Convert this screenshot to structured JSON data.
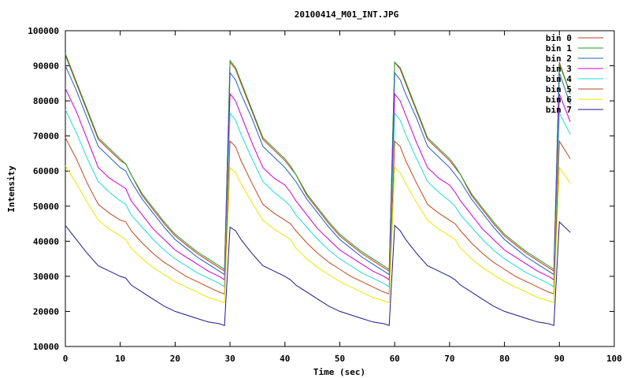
{
  "chart_data": {
    "type": "line",
    "title": "20100414_M01_INT.JPG",
    "xlabel": "Time (sec)",
    "ylabel": "Intensity",
    "xlim": [
      0,
      100
    ],
    "ylim": [
      10000,
      100000
    ],
    "x_ticks": [
      0,
      10,
      20,
      30,
      40,
      50,
      60,
      70,
      80,
      90,
      100
    ],
    "y_ticks": [
      10000,
      20000,
      30000,
      40000,
      50000,
      60000,
      70000,
      80000,
      90000,
      100000
    ],
    "grid": false,
    "legend_position": "top-right",
    "series": [
      {
        "name": "bin 0",
        "color": "#c0392b",
        "x": [
          0,
          2,
          4,
          6,
          8,
          10,
          11,
          12,
          14,
          16,
          18,
          20,
          22,
          24,
          26,
          28,
          29,
          30,
          31,
          32,
          34,
          36,
          38,
          40,
          41,
          42,
          44,
          46,
          48,
          50,
          52,
          54,
          56,
          58,
          59,
          60,
          61,
          62,
          64,
          66,
          68,
          70,
          71,
          72,
          74,
          76,
          78,
          80,
          82,
          84,
          86,
          88,
          89,
          90,
          92
        ],
        "y": [
          93000,
          85000,
          77000,
          69000,
          66000,
          63000,
          62000,
          59000,
          53000,
          49000,
          45000,
          41500,
          39000,
          36500,
          34500,
          32500,
          31500,
          91000,
          89000,
          85000,
          77000,
          69000,
          66000,
          63000,
          61000,
          59000,
          53000,
          49000,
          45000,
          41500,
          39000,
          36500,
          34500,
          32500,
          31500,
          91000,
          89000,
          85000,
          77000,
          69000,
          66000,
          63000,
          61000,
          59000,
          53000,
          49000,
          45000,
          41500,
          39000,
          36500,
          34500,
          32500,
          31500,
          91000,
          82000
        ]
      },
      {
        "name": "bin 1",
        "color": "#1e9e1e",
        "x": [
          0,
          2,
          4,
          6,
          8,
          10,
          11,
          12,
          14,
          16,
          18,
          20,
          22,
          24,
          26,
          28,
          29,
          30,
          31,
          32,
          34,
          36,
          38,
          40,
          41,
          42,
          44,
          46,
          48,
          50,
          52,
          54,
          56,
          58,
          59,
          60,
          61,
          62,
          64,
          66,
          68,
          70,
          71,
          72,
          74,
          76,
          78,
          80,
          82,
          84,
          86,
          88,
          89,
          90,
          92
        ],
        "y": [
          93500,
          85500,
          77500,
          69500,
          66500,
          63500,
          62000,
          59000,
          53500,
          49500,
          45500,
          42000,
          39500,
          37000,
          35000,
          33000,
          32000,
          91500,
          89500,
          85500,
          77500,
          69500,
          66500,
          63500,
          61500,
          59000,
          53500,
          49500,
          45500,
          42000,
          39500,
          37000,
          35000,
          33000,
          32000,
          91000,
          89500,
          85500,
          77500,
          69500,
          66500,
          63500,
          61500,
          59000,
          53500,
          49500,
          45500,
          42000,
          39500,
          37000,
          35000,
          33000,
          32000,
          90500,
          82000
        ]
      },
      {
        "name": "bin 2",
        "color": "#1f5fbf",
        "x": [
          0,
          2,
          4,
          6,
          8,
          10,
          11,
          12,
          14,
          16,
          18,
          20,
          22,
          24,
          26,
          28,
          29,
          30,
          31,
          32,
          34,
          36,
          38,
          40,
          41,
          42,
          44,
          46,
          48,
          50,
          52,
          54,
          56,
          58,
          59,
          60,
          61,
          62,
          64,
          66,
          68,
          70,
          71,
          72,
          74,
          76,
          78,
          80,
          82,
          84,
          86,
          88,
          89,
          90,
          92
        ],
        "y": [
          90000,
          83000,
          75000,
          67000,
          64000,
          61000,
          60000,
          57000,
          52000,
          48000,
          44000,
          40500,
          38000,
          35500,
          33500,
          31500,
          30500,
          88000,
          86000,
          82000,
          75000,
          67000,
          64000,
          61000,
          59000,
          57000,
          52000,
          48000,
          44000,
          40500,
          38000,
          35500,
          33500,
          31500,
          30500,
          88000,
          86000,
          82000,
          75000,
          67000,
          64000,
          61000,
          59000,
          57000,
          52000,
          48000,
          44000,
          40500,
          38000,
          35500,
          33500,
          31500,
          30500,
          88000,
          79000
        ]
      },
      {
        "name": "bin 3",
        "color": "#cc00cc",
        "x": [
          0,
          2,
          4,
          6,
          8,
          10,
          11,
          12,
          14,
          16,
          18,
          20,
          22,
          24,
          26,
          28,
          29,
          30,
          31,
          32,
          34,
          36,
          38,
          40,
          41,
          42,
          44,
          46,
          48,
          50,
          52,
          54,
          56,
          58,
          59,
          60,
          61,
          62,
          64,
          66,
          68,
          70,
          71,
          72,
          74,
          76,
          78,
          80,
          82,
          84,
          86,
          88,
          89,
          90,
          92
        ],
        "y": [
          83500,
          77000,
          69000,
          61000,
          58000,
          56000,
          55000,
          51500,
          47500,
          43500,
          40500,
          37500,
          35500,
          33500,
          31500,
          30000,
          29000,
          82000,
          80000,
          76000,
          68000,
          61000,
          58000,
          56000,
          54000,
          51500,
          47500,
          43500,
          40500,
          37500,
          35500,
          33500,
          31500,
          30000,
          29000,
          82000,
          80000,
          76000,
          68000,
          61000,
          58000,
          56000,
          54000,
          51500,
          47500,
          43500,
          40500,
          37500,
          35500,
          33500,
          31500,
          30000,
          29000,
          82000,
          74000
        ]
      },
      {
        "name": "bin 4",
        "color": "#22d8d8",
        "x": [
          0,
          2,
          4,
          6,
          8,
          10,
          11,
          12,
          14,
          16,
          18,
          20,
          22,
          24,
          26,
          28,
          29,
          30,
          31,
          32,
          34,
          36,
          38,
          40,
          41,
          42,
          44,
          46,
          48,
          50,
          52,
          54,
          56,
          58,
          59,
          60,
          61,
          62,
          64,
          66,
          68,
          70,
          71,
          72,
          74,
          76,
          78,
          80,
          82,
          84,
          86,
          88,
          89,
          90,
          92
        ],
        "y": [
          77500,
          71000,
          63500,
          57000,
          54000,
          51500,
          50500,
          47500,
          44000,
          40500,
          37500,
          35000,
          33000,
          31000,
          29500,
          28000,
          27000,
          76500,
          74500,
          70500,
          63500,
          57000,
          54000,
          51500,
          50000,
          47500,
          44000,
          40500,
          37500,
          35000,
          33000,
          31000,
          29500,
          28000,
          27000,
          76500,
          74500,
          70500,
          63500,
          57000,
          54000,
          51500,
          50000,
          47500,
          44000,
          40500,
          37500,
          35000,
          33000,
          31000,
          29500,
          28000,
          27000,
          76500,
          70500
        ]
      },
      {
        "name": "bin 5",
        "color": "#b84a1c",
        "x": [
          0,
          2,
          4,
          6,
          8,
          10,
          11,
          12,
          14,
          16,
          18,
          20,
          22,
          24,
          26,
          28,
          29,
          30,
          31,
          32,
          34,
          36,
          38,
          40,
          41,
          42,
          44,
          46,
          48,
          50,
          52,
          54,
          56,
          58,
          59,
          60,
          61,
          62,
          64,
          66,
          68,
          70,
          71,
          72,
          74,
          76,
          78,
          80,
          82,
          84,
          86,
          88,
          89,
          90,
          92
        ],
        "y": [
          69500,
          63500,
          56500,
          50500,
          48000,
          46000,
          45500,
          43000,
          39500,
          36500,
          34000,
          32000,
          30000,
          28500,
          27000,
          25500,
          25000,
          68500,
          67000,
          63000,
          56500,
          50500,
          48000,
          46000,
          45000,
          43000,
          39500,
          36500,
          34000,
          32000,
          30000,
          28500,
          27000,
          25500,
          25000,
          68500,
          67000,
          63000,
          56500,
          50500,
          48000,
          46000,
          45000,
          43000,
          39500,
          36500,
          34000,
          32000,
          30000,
          28500,
          27000,
          25500,
          25000,
          68500,
          63500
        ]
      },
      {
        "name": "bin 6",
        "color": "#e8e800",
        "x": [
          0,
          2,
          4,
          6,
          8,
          10,
          11,
          12,
          14,
          16,
          18,
          20,
          22,
          24,
          26,
          28,
          29,
          30,
          31,
          32,
          34,
          36,
          38,
          40,
          41,
          42,
          44,
          46,
          48,
          50,
          52,
          54,
          56,
          58,
          59,
          60,
          61,
          62,
          64,
          66,
          68,
          70,
          71,
          72,
          74,
          76,
          78,
          80,
          82,
          84,
          86,
          88,
          89,
          90,
          92
        ],
        "y": [
          61500,
          56500,
          51000,
          46000,
          43500,
          41500,
          40500,
          38000,
          35000,
          32500,
          30500,
          28500,
          27000,
          25500,
          24000,
          23000,
          22500,
          61000,
          59500,
          56500,
          51000,
          46000,
          43500,
          41500,
          40500,
          38000,
          35000,
          32500,
          30500,
          28500,
          27000,
          25500,
          24000,
          23000,
          22500,
          61000,
          59500,
          56500,
          51000,
          46000,
          43500,
          41500,
          40500,
          38000,
          35000,
          32500,
          30500,
          28500,
          27000,
          25500,
          24000,
          23000,
          22500,
          61000,
          56500
        ]
      },
      {
        "name": "bin 7",
        "color": "#1a1a8c",
        "x": [
          0,
          2,
          4,
          6,
          8,
          10,
          11,
          12,
          14,
          16,
          18,
          20,
          22,
          24,
          26,
          28,
          29,
          30,
          31,
          32,
          34,
          36,
          38,
          40,
          41,
          42,
          44,
          46,
          48,
          50,
          52,
          54,
          56,
          58,
          59,
          60,
          61,
          62,
          64,
          66,
          68,
          70,
          71,
          72,
          74,
          76,
          78,
          80,
          82,
          84,
          86,
          88,
          89,
          90,
          92
        ],
        "y": [
          44500,
          40500,
          36500,
          33000,
          31500,
          30000,
          29500,
          27500,
          25500,
          23500,
          21500,
          20000,
          19000,
          18000,
          17000,
          16500,
          16000,
          44000,
          43000,
          40500,
          36500,
          33000,
          31500,
          30000,
          29000,
          27500,
          25500,
          23500,
          21500,
          20000,
          19000,
          18000,
          17000,
          16500,
          16000,
          44500,
          43000,
          40500,
          36500,
          33000,
          31500,
          30000,
          29000,
          27500,
          25500,
          23500,
          21500,
          20000,
          19000,
          18000,
          17000,
          16500,
          16000,
          45500,
          42500
        ]
      }
    ]
  }
}
